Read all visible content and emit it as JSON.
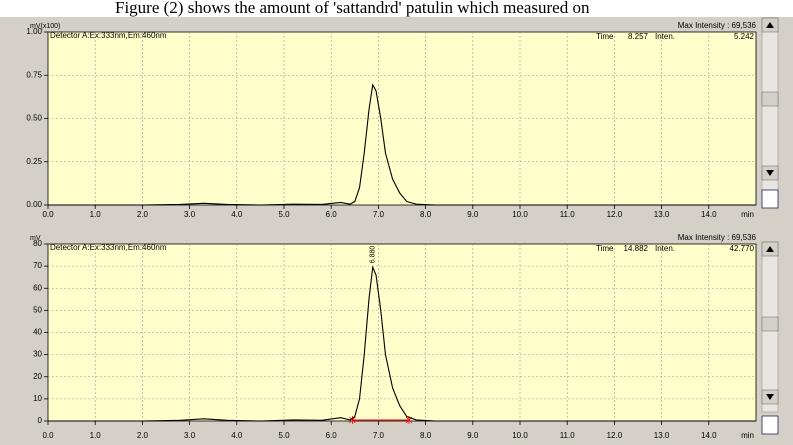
{
  "header": {
    "caption": "Figure (2) shows the amount of 'sattandrd' patulin which measured on"
  },
  "chart_data": [
    {
      "type": "line",
      "y_label": "mV(x100)",
      "detector": "Detector A:Ex:333nm,Em:460nm",
      "time_label": "Time",
      "time": "8.257",
      "inten_label": "Inten.",
      "inten": "5.242",
      "max_intensity": "Max Intensity : 69,536",
      "x_unit": "min",
      "x": [
        0,
        1,
        2,
        2.8,
        3.3,
        3.8,
        4.5,
        5.2,
        5.8,
        6.2,
        6.4,
        6.5,
        6.6,
        6.7,
        6.8,
        6.88,
        6.95,
        7.05,
        7.15,
        7.3,
        7.45,
        7.6,
        7.8,
        8.2,
        9,
        10,
        11,
        12,
        13,
        14,
        15
      ],
      "series": [
        {
          "color": "#000000",
          "values": [
            0,
            0,
            0,
            0.003,
            0.01,
            0.003,
            0,
            0.005,
            0.003,
            0.015,
            0.005,
            0.02,
            0.1,
            0.3,
            0.55,
            0.695,
            0.66,
            0.5,
            0.3,
            0.15,
            0.07,
            0.02,
            0.005,
            0,
            0,
            0,
            0,
            0,
            0,
            0,
            0
          ]
        }
      ],
      "xlim": [
        0,
        15
      ],
      "ylim": [
        0,
        1
      ],
      "xticks": [
        {
          "value": 0,
          "label": "0.0"
        },
        {
          "value": 1,
          "label": "1.0"
        },
        {
          "value": 2,
          "label": "2.0"
        },
        {
          "value": 3,
          "label": "3.0"
        },
        {
          "value": 4,
          "label": "4.0"
        },
        {
          "value": 5,
          "label": "5.0"
        },
        {
          "value": 6,
          "label": "6.0"
        },
        {
          "value": 7,
          "label": "7.0"
        },
        {
          "value": 8,
          "label": "8.0"
        },
        {
          "value": 9,
          "label": "9.0"
        },
        {
          "value": 10,
          "label": "10.0"
        },
        {
          "value": 11,
          "label": "11.0"
        },
        {
          "value": 12,
          "label": "12.0"
        },
        {
          "value": 13,
          "label": "13.0"
        },
        {
          "value": 14,
          "label": "14.0"
        }
      ],
      "yticks": [
        {
          "value": 0,
          "label": "0.00"
        },
        {
          "value": 0.25,
          "label": "0.25"
        },
        {
          "value": 0.5,
          "label": "0.50"
        },
        {
          "value": 0.75,
          "label": "0.75"
        },
        {
          "value": 1,
          "label": "1.00"
        }
      ],
      "grid": true
    },
    {
      "type": "line",
      "y_label": "mV",
      "detector": "Detector A:Ex:333nm,Em:460nm",
      "time_label": "Time",
      "time": "14.882",
      "inten_label": "Inten.",
      "inten": "42.770",
      "max_intensity": "Max Intensity : 69,536",
      "x_unit": "min",
      "x": [
        0,
        1,
        2,
        2.8,
        3.3,
        3.8,
        4.5,
        5.2,
        5.8,
        6.2,
        6.4,
        6.5,
        6.6,
        6.7,
        6.8,
        6.88,
        6.95,
        7.05,
        7.15,
        7.3,
        7.45,
        7.6,
        7.8,
        8.2,
        9,
        10,
        11,
        12,
        13,
        14,
        15
      ],
      "series": [
        {
          "color": "#000000",
          "values": [
            0,
            0,
            0,
            0.3,
            1,
            0.3,
            0,
            0.5,
            0.3,
            1.5,
            0.5,
            2,
            10,
            30,
            55,
            69.5,
            66,
            50,
            30,
            15,
            7,
            2,
            0.5,
            0,
            0,
            0,
            0,
            0,
            0,
            0,
            0
          ]
        }
      ],
      "integration": {
        "color": "#ff0000",
        "start": 6.45,
        "end": 7.65
      },
      "annotations": [
        {
          "text": "6.880",
          "x": 6.88,
          "y": 69.5
        }
      ],
      "xlim": [
        0,
        15
      ],
      "ylim": [
        0,
        80
      ],
      "xticks": [
        {
          "value": 0,
          "label": "0.0"
        },
        {
          "value": 1,
          "label": "1.0"
        },
        {
          "value": 2,
          "label": "2.0"
        },
        {
          "value": 3,
          "label": "3.0"
        },
        {
          "value": 4,
          "label": "4.0"
        },
        {
          "value": 5,
          "label": "5.0"
        },
        {
          "value": 6,
          "label": "6.0"
        },
        {
          "value": 7,
          "label": "7.0"
        },
        {
          "value": 8,
          "label": "8.0"
        },
        {
          "value": 9,
          "label": "9.0"
        },
        {
          "value": 10,
          "label": "10.0"
        },
        {
          "value": 11,
          "label": "11.0"
        },
        {
          "value": 12,
          "label": "12.0"
        },
        {
          "value": 13,
          "label": "13.0"
        },
        {
          "value": 14,
          "label": "14.0"
        }
      ],
      "yticks": [
        0,
        10,
        20,
        30,
        40,
        50,
        60,
        70,
        80
      ],
      "grid": true
    }
  ]
}
